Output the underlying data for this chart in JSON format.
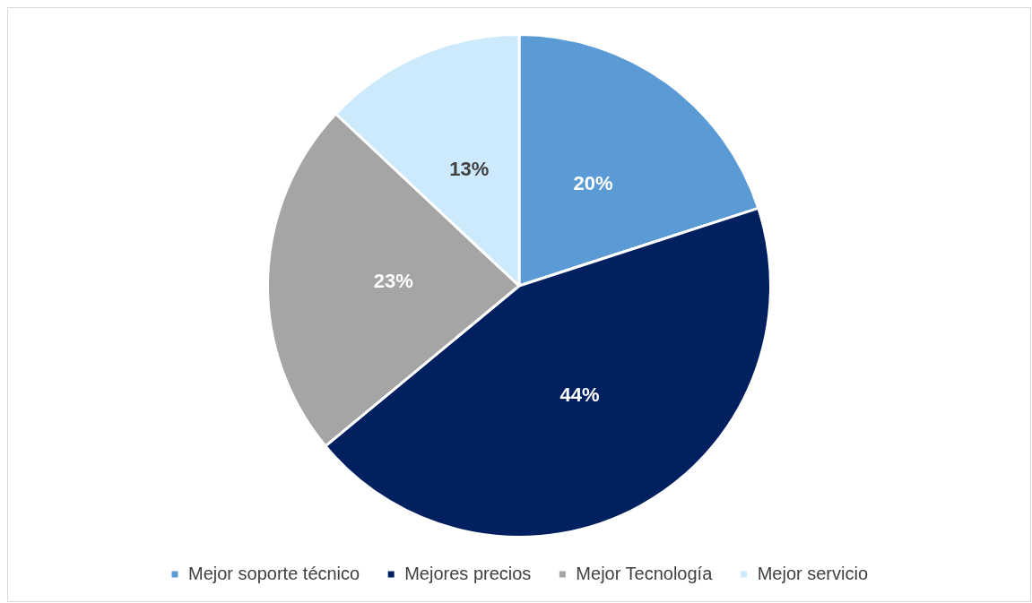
{
  "chart_data": {
    "type": "pie",
    "categories": [
      "Mejor soporte técnico",
      "Mejores precios",
      "Mejor Tecnología",
      "Mejor servicio"
    ],
    "values": [
      20,
      44,
      23,
      13
    ],
    "colors": [
      "#5b9bd5",
      "#002060",
      "#a5a5a5",
      "#cdeafd"
    ],
    "value_labels": [
      "20%",
      "44%",
      "23%",
      "13%"
    ],
    "legend": "bottom"
  }
}
